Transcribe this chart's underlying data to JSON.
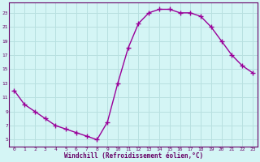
{
  "x": [
    0,
    1,
    2,
    3,
    4,
    5,
    6,
    7,
    8,
    9,
    10,
    11,
    12,
    13,
    14,
    15,
    16,
    17,
    18,
    19,
    20,
    21,
    22,
    23
  ],
  "y": [
    12,
    10,
    9,
    8,
    7,
    6.5,
    6,
    5.5,
    5,
    7.5,
    13,
    18,
    21.5,
    23,
    23.5,
    23.5,
    23,
    23,
    22.5,
    21,
    19,
    17,
    15.5,
    14.5
  ],
  "line_color": "#990099",
  "marker": "+",
  "marker_size": 4,
  "xlim": [
    -0.5,
    23.5
  ],
  "ylim": [
    4,
    24.5
  ],
  "xticks": [
    0,
    1,
    2,
    3,
    4,
    5,
    6,
    7,
    8,
    9,
    10,
    11,
    12,
    13,
    14,
    15,
    16,
    17,
    18,
    19,
    20,
    21,
    22,
    23
  ],
  "yticks": [
    5,
    7,
    9,
    11,
    13,
    15,
    17,
    19,
    21,
    23
  ],
  "xlabel": "Windchill (Refroidissement éolien,°C)",
  "background_color": "#d4f5f5",
  "grid_color": "#b8e0e0",
  "axis_color": "#660066",
  "tick_label_color": "#660066",
  "xlabel_color": "#660066",
  "line_width": 1.0
}
